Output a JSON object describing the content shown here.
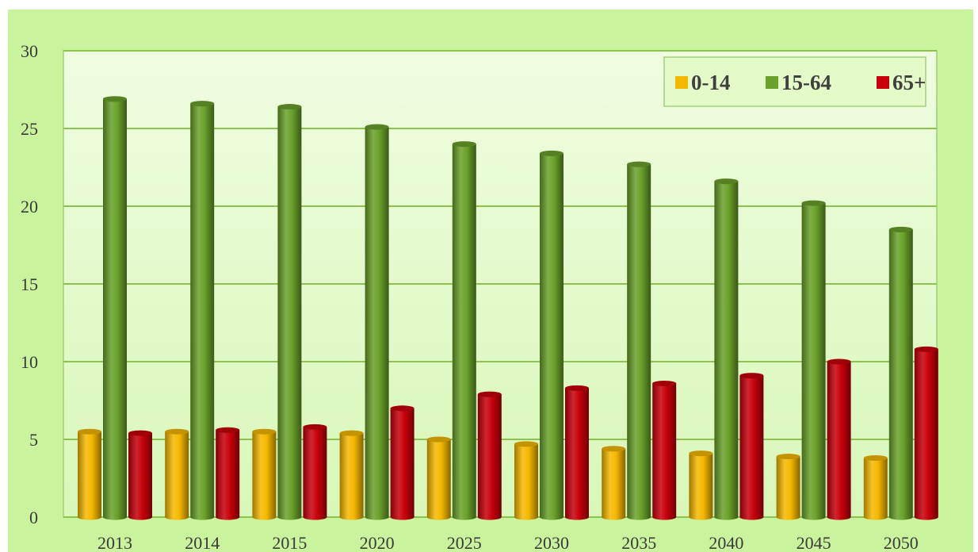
{
  "chart_data": {
    "type": "bar",
    "categories": [
      "2013",
      "2014",
      "2015",
      "2020",
      "2025",
      "2030",
      "2035",
      "2040",
      "2045",
      "2050"
    ],
    "series": [
      {
        "name": "0-14",
        "color": "#f5b800",
        "values": [
          5.5,
          5.5,
          5.5,
          5.4,
          5.0,
          4.7,
          4.4,
          4.1,
          3.9,
          3.8
        ]
      },
      {
        "name": "15-64",
        "color": "#6aa12a",
        "values": [
          26.9,
          26.6,
          26.4,
          25.1,
          24.0,
          23.4,
          22.7,
          21.6,
          20.2,
          18.5
        ]
      },
      {
        "name": "65+",
        "color": "#c8000a",
        "values": [
          5.4,
          5.6,
          5.8,
          7.0,
          7.9,
          8.3,
          8.6,
          9.1,
          10.0,
          10.8
        ]
      }
    ],
    "ylim": [
      0,
      30
    ],
    "yticks": [
      0,
      5,
      10,
      15,
      20,
      25,
      30
    ],
    "grid": true,
    "legend_position": "top-right"
  }
}
